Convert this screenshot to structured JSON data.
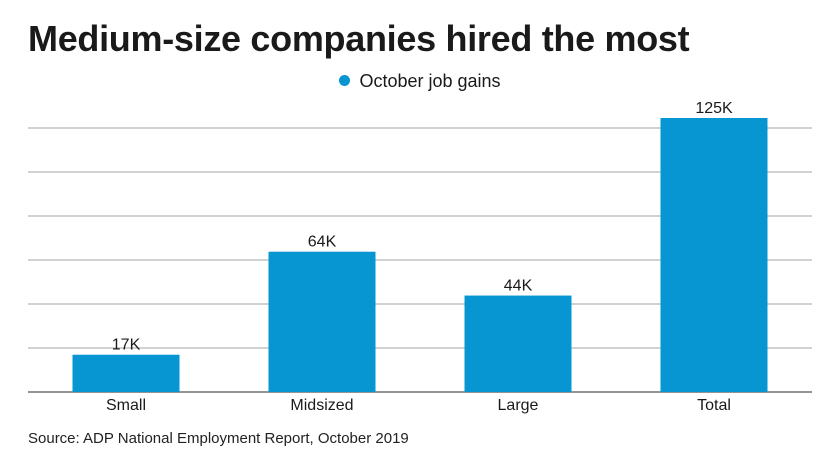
{
  "colors": {
    "bar": "#0896d2",
    "grid": "#a6a6a6",
    "axis": "#555555"
  },
  "chart_data": {
    "type": "bar",
    "title": "Medium-size companies hired the most",
    "series": [
      {
        "name": "October job gains",
        "values": [
          17,
          64,
          44,
          125
        ]
      }
    ],
    "categories": [
      "Small",
      "Midsized",
      "Large",
      "Total"
    ],
    "data_labels": [
      "17K",
      "64K",
      "44K",
      "125K"
    ],
    "ylim": [
      0,
      125
    ],
    "grid": true,
    "legend": "top-center",
    "source": "Source: ADP National Employment Report, October 2019"
  }
}
